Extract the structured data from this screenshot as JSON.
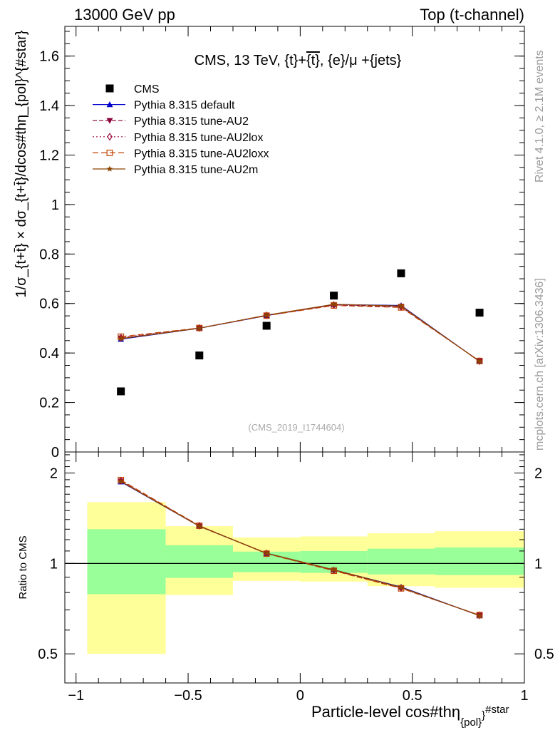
{
  "header": {
    "left": "13000 GeV pp",
    "right": "Top (t-channel)"
  },
  "side_labels": {
    "rivet": "Rivet 4.1.0, ≥ 2.1M events",
    "mcplots": "mcplots.cern.ch [arXiv:1306.3436]"
  },
  "watermark": "(CMS_2019_I1744604)",
  "colors": {
    "cms": "#000000",
    "default": "#0000cc",
    "au2": "#8b003a",
    "au2lox": "#a01040",
    "au2loxx": "#c04000",
    "au2m": "#8b4500",
    "band_yellow": "#ffff99",
    "band_green": "#99ff99"
  },
  "chart_data": [
    {
      "type": "scatter+line",
      "title": "CMS, 13 TeV, {t}+{t̄}, {e}/μ +{jets}",
      "title_parts": {
        "pre": "CMS, 13 TeV, {t}+",
        "tbar": "{t}",
        "post": ", {e}/μ +{jets}"
      },
      "ylabel": "1/σ_{t+t̄} × dσ_{t+t̄}/dcos#thη_{pol}^{#star}",
      "ylim": [
        0,
        1.72
      ],
      "yticks": [
        0,
        0.2,
        0.4,
        0.6,
        0.8,
        1,
        1.2,
        1.4,
        1.6
      ],
      "ytick_labels": [
        "0",
        "0.2",
        "0.4",
        "0.6",
        "0.8",
        "1",
        "1.2",
        "1.4",
        "1.6"
      ],
      "xlim": [
        -1.05,
        1.0
      ],
      "legend": [
        {
          "key": "cms",
          "label": "CMS"
        },
        {
          "key": "default",
          "label": "Pythia 8.315 default"
        },
        {
          "key": "au2",
          "label": "Pythia 8.315 tune-AU2"
        },
        {
          "key": "au2lox",
          "label": "Pythia 8.315 tune-AU2lox"
        },
        {
          "key": "au2loxx",
          "label": "Pythia 8.315 tune-AU2loxx"
        },
        {
          "key": "au2m",
          "label": "Pythia 8.315 tune-AU2m"
        }
      ],
      "x": [
        -0.8,
        -0.45,
        -0.15,
        0.15,
        0.45,
        0.8
      ],
      "data": {
        "name": "CMS",
        "values": [
          0.245,
          0.39,
          0.51,
          0.632,
          0.722,
          0.563
        ]
      },
      "series": [
        {
          "key": "default",
          "name": "Pythia 8.315 default",
          "values": [
            0.456,
            0.5,
            0.551,
            0.596,
            0.592,
            0.366
          ]
        },
        {
          "key": "au2",
          "name": "Pythia 8.315 tune-AU2",
          "values": [
            0.46,
            0.5,
            0.552,
            0.595,
            0.588,
            0.367
          ]
        },
        {
          "key": "au2lox",
          "name": "Pythia 8.315 tune-AU2lox",
          "values": [
            0.462,
            0.501,
            0.552,
            0.594,
            0.586,
            0.367
          ]
        },
        {
          "key": "au2loxx",
          "name": "Pythia 8.315 tune-AU2loxx",
          "values": [
            0.466,
            0.501,
            0.551,
            0.592,
            0.584,
            0.368
          ]
        },
        {
          "key": "au2m",
          "name": "Pythia 8.315 tune-AU2m",
          "values": [
            0.458,
            0.5,
            0.553,
            0.597,
            0.59,
            0.366
          ]
        }
      ]
    },
    {
      "type": "ratio",
      "ylabel": "Ratio to CMS",
      "xlabel": "Particle-level cos#thη_{pol}^{#star}",
      "xlabel_parts": {
        "main": "Particle-level cos#thη",
        "sub": "{pol}",
        "sup": "#star",
        "close": "}"
      },
      "ylim": [
        0.4,
        2.35
      ],
      "yticks": [
        0.5,
        1,
        2
      ],
      "ytick_labels": [
        "0.5",
        "1",
        "2"
      ],
      "xticks": [
        -1,
        -0.5,
        0,
        0.5,
        1
      ],
      "xtick_labels": [
        "−1",
        "−0.5",
        "0",
        "0.5",
        "1"
      ],
      "bins": [
        {
          "lo": -0.95,
          "hi": -0.6,
          "yellow": [
            0.5,
            1.6
          ],
          "green": [
            0.79,
            1.3
          ]
        },
        {
          "lo": -0.6,
          "hi": -0.3,
          "yellow": [
            0.785,
            1.33
          ],
          "green": [
            0.895,
            1.15
          ]
        },
        {
          "lo": -0.3,
          "hi": 0.0,
          "yellow": [
            0.875,
            1.22
          ],
          "green": [
            0.935,
            1.095
          ]
        },
        {
          "lo": 0.0,
          "hi": 0.3,
          "yellow": [
            0.87,
            1.23
          ],
          "green": [
            0.93,
            1.1
          ]
        },
        {
          "lo": 0.3,
          "hi": 0.6,
          "yellow": [
            0.84,
            1.26
          ],
          "green": [
            0.92,
            1.12
          ]
        },
        {
          "lo": 0.6,
          "hi": 1.0,
          "yellow": [
            0.83,
            1.28
          ],
          "green": [
            0.915,
            1.13
          ]
        }
      ],
      "series": [
        {
          "key": "default",
          "values": [
            1.87,
            1.33,
            1.08,
            0.952,
            0.835,
            0.67
          ]
        },
        {
          "key": "au2",
          "values": [
            1.88,
            1.33,
            1.08,
            0.95,
            0.83,
            0.672
          ]
        },
        {
          "key": "au2lox",
          "values": [
            1.885,
            1.335,
            1.08,
            0.948,
            0.828,
            0.672
          ]
        },
        {
          "key": "au2loxx",
          "values": [
            1.895,
            1.335,
            1.078,
            0.945,
            0.826,
            0.673
          ]
        },
        {
          "key": "au2m",
          "values": [
            1.875,
            1.33,
            1.082,
            0.953,
            0.832,
            0.67
          ]
        }
      ]
    }
  ]
}
